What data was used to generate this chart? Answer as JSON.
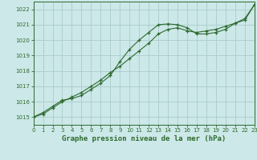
{
  "title": "Graphe pression niveau de la mer (hPa)",
  "background_color": "#cce8e8",
  "grid_color": "#aacccc",
  "line_color": "#2d6a2d",
  "marker_color": "#2d6a2d",
  "xlim": [
    0,
    23
  ],
  "ylim": [
    1014.5,
    1022.5
  ],
  "yticks": [
    1015,
    1016,
    1017,
    1018,
    1019,
    1020,
    1021,
    1022
  ],
  "xticks": [
    0,
    1,
    2,
    3,
    4,
    5,
    6,
    7,
    8,
    9,
    10,
    11,
    12,
    13,
    14,
    15,
    16,
    17,
    18,
    19,
    20,
    21,
    22,
    23
  ],
  "series1_x": [
    0,
    1,
    2,
    3,
    4,
    5,
    6,
    7,
    8,
    9,
    10,
    11,
    12,
    13,
    14,
    15,
    16,
    17,
    18,
    19,
    20,
    21,
    22,
    23
  ],
  "series1_y": [
    1015.0,
    1015.3,
    1015.7,
    1016.1,
    1016.2,
    1016.4,
    1016.8,
    1017.2,
    1017.7,
    1018.6,
    1019.4,
    1020.0,
    1020.5,
    1021.0,
    1021.05,
    1021.0,
    1020.8,
    1020.4,
    1020.4,
    1020.5,
    1020.7,
    1021.1,
    1021.3,
    1022.3
  ],
  "series2_x": [
    0,
    1,
    2,
    3,
    4,
    5,
    6,
    7,
    8,
    9,
    10,
    11,
    12,
    13,
    14,
    15,
    16,
    17,
    18,
    19,
    20,
    21,
    22,
    23
  ],
  "series2_y": [
    1015.0,
    1015.2,
    1015.6,
    1016.0,
    1016.3,
    1016.6,
    1017.0,
    1017.4,
    1017.9,
    1018.3,
    1018.8,
    1019.3,
    1019.8,
    1020.4,
    1020.7,
    1020.8,
    1020.6,
    1020.5,
    1020.6,
    1020.7,
    1020.9,
    1021.1,
    1021.4,
    1022.3
  ],
  "ylabel_fontsize": 5.5,
  "xlabel_fontsize": 6.5,
  "tick_fontsize": 5.0
}
